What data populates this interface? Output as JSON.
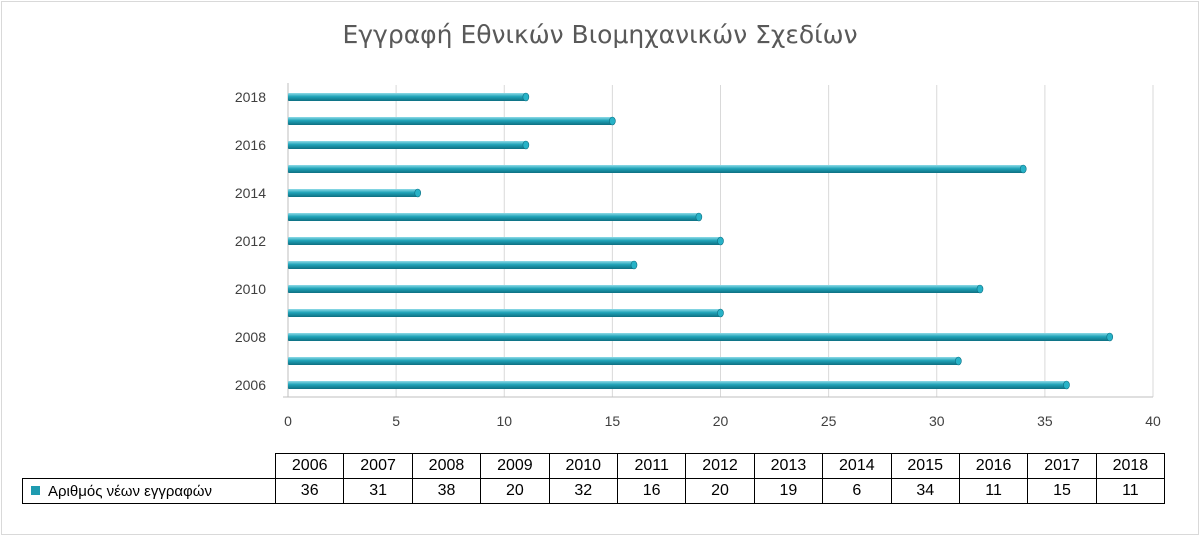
{
  "chart_data": {
    "type": "bar",
    "orientation": "horizontal",
    "title": "Εγγραφή Εθνικών Βιομηχανικών Σχεδίων",
    "categories": [
      "2006",
      "2007",
      "2008",
      "2009",
      "2010",
      "2011",
      "2012",
      "2013",
      "2014",
      "2015",
      "2016",
      "2017",
      "2018"
    ],
    "y_tick_labels": [
      "2006",
      "2008",
      "2010",
      "2012",
      "2014",
      "2016",
      "2018"
    ],
    "series": [
      {
        "name": "Αριθμός νέων εγγραφών",
        "values": [
          36,
          31,
          38,
          20,
          32,
          16,
          20,
          19,
          6,
          34,
          11,
          15,
          11
        ],
        "color": "#1f9bb0"
      }
    ],
    "x_ticks": [
      "0",
      "5",
      "10",
      "15",
      "20",
      "25",
      "30",
      "35",
      "40"
    ],
    "xlim": [
      0,
      40
    ],
    "grid": true,
    "legend": "data-table-below"
  }
}
